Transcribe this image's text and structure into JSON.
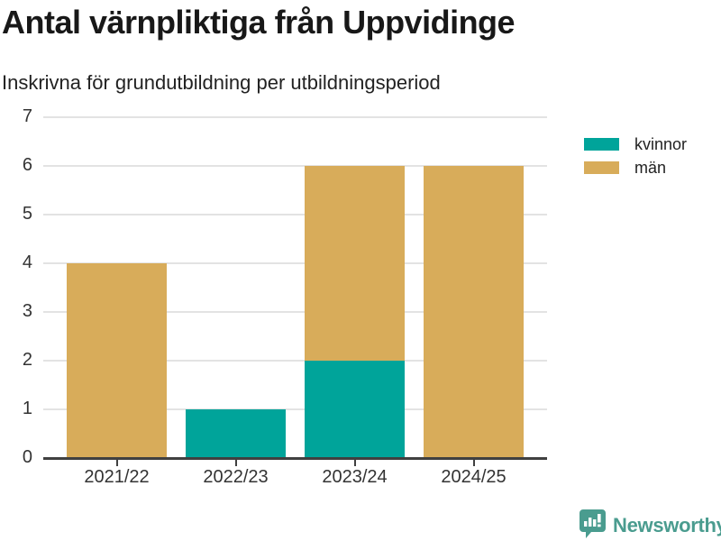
{
  "header": {
    "title": "Antal värnpliktiga från Uppvidinge",
    "subtitle": "Inskrivna för grundutbildning per utbildningsperiod"
  },
  "chart_data": {
    "type": "bar",
    "stacked": true,
    "title": "Antal värnpliktiga från Uppvidinge",
    "subtitle": "Inskrivna för grundutbildning per utbildningsperiod",
    "categories": [
      "2021/22",
      "2022/23",
      "2023/24",
      "2024/25"
    ],
    "series": [
      {
        "name": "kvinnor",
        "color": "#00a49a",
        "values": [
          0,
          1,
          2,
          0
        ]
      },
      {
        "name": "män",
        "color": "#d8ac5a",
        "values": [
          4,
          0,
          4,
          6
        ]
      }
    ],
    "totals": [
      4,
      1,
      6,
      6
    ],
    "ylim": [
      0,
      7
    ],
    "yticks": [
      0,
      1,
      2,
      3,
      4,
      5,
      6,
      7
    ],
    "xlabel": "",
    "ylabel": "",
    "grid": true,
    "legend_position": "right"
  },
  "colors": {
    "grid": "#e3e3e3",
    "axis": "#404040",
    "text": "#333333",
    "brand": "#4a9c8f"
  },
  "footer": {
    "brand": "Newsworthy",
    "icon": "speech-bubble-bar-chart-icon"
  }
}
